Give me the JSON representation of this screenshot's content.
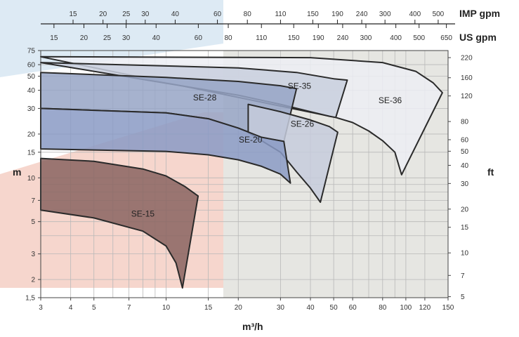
{
  "chart_data": {
    "type": "area",
    "title": "",
    "xlabel": "m³/h",
    "ylabel_left": "m",
    "ylabel_right": "ft",
    "x_scale": "log",
    "y_scale": "log",
    "xlim": [
      3,
      150
    ],
    "ylim": [
      1.5,
      75
    ],
    "top_axis_imp_label": "IMP gpm",
    "top_axis_us_label": "US gpm",
    "x_ticks": [
      {
        "v": 3,
        "label": "3"
      },
      {
        "v": 4,
        "label": "4"
      },
      {
        "v": 5,
        "label": "5"
      },
      {
        "v": 7,
        "label": "7"
      },
      {
        "v": 10,
        "label": "10"
      },
      {
        "v": 15,
        "label": "15"
      },
      {
        "v": 20,
        "label": "20"
      },
      {
        "v": 30,
        "label": "30"
      },
      {
        "v": 40,
        "label": "40"
      },
      {
        "v": 50,
        "label": "50"
      },
      {
        "v": 60,
        "label": "60"
      },
      {
        "v": 80,
        "label": "80"
      },
      {
        "v": 100,
        "label": "100"
      },
      {
        "v": 120,
        "label": "120"
      },
      {
        "v": 150,
        "label": "150"
      }
    ],
    "y_ticks_m": [
      {
        "v": 1.5,
        "label": "1,5"
      },
      {
        "v": 2,
        "label": "2"
      },
      {
        "v": 3,
        "label": "3"
      },
      {
        "v": 5,
        "label": "5"
      },
      {
        "v": 7,
        "label": "7"
      },
      {
        "v": 10,
        "label": "10"
      },
      {
        "v": 15,
        "label": "15"
      },
      {
        "v": 20,
        "label": "20"
      },
      {
        "v": 30,
        "label": "30"
      },
      {
        "v": 40,
        "label": "40"
      },
      {
        "v": 50,
        "label": "50"
      },
      {
        "v": 60,
        "label": "60"
      },
      {
        "v": 75,
        "label": "75"
      }
    ],
    "y_ticks_ft": [
      "5",
      "7",
      "10",
      "15",
      "20",
      "30",
      "40",
      "50",
      "60",
      "80",
      "120",
      "160",
      "220"
    ],
    "imp_gpm_ticks": [
      "15",
      "20",
      "25",
      "30",
      "40",
      "60",
      "80",
      "110",
      "150",
      "190",
      "240",
      "300",
      "400",
      "500"
    ],
    "us_gpm_ticks": [
      "15",
      "20",
      "25",
      "30",
      "40",
      "60",
      "80",
      "110",
      "150",
      "190",
      "240",
      "300",
      "400",
      "500",
      "650"
    ],
    "series": [
      {
        "name": "SE-15",
        "color": "#8a6460",
        "upper": [
          [
            3,
            13.6
          ],
          [
            5,
            13.0
          ],
          [
            8,
            11.5
          ],
          [
            10,
            10.3
          ],
          [
            12,
            8.7
          ],
          [
            13.6,
            7.5
          ]
        ],
        "lower": [
          [
            3,
            6.0
          ],
          [
            5,
            5.3
          ],
          [
            8,
            4.3
          ],
          [
            10,
            3.4
          ],
          [
            11,
            2.6
          ],
          [
            11.7,
            1.75
          ]
        ]
      },
      {
        "name": "SE-20",
        "color": "#8a9ac4",
        "upper": [
          [
            3,
            15.8
          ],
          [
            10,
            15.2
          ],
          [
            15,
            14.4
          ],
          [
            20,
            13.3
          ],
          [
            25,
            12.0
          ],
          [
            30,
            10.6
          ],
          [
            33,
            9.2
          ]
        ],
        "lower": [
          [
            3,
            30.0
          ],
          [
            10,
            28.0
          ],
          [
            15,
            25.5
          ],
          [
            20,
            22.0
          ],
          [
            25,
            19.0
          ],
          [
            31,
            17.8
          ]
        ]
      },
      {
        "name": "SE-26",
        "color": "#c5cbdc",
        "upper": [
          [
            22,
            20.5
          ],
          [
            30,
            15.0
          ],
          [
            35,
            11.0
          ],
          [
            40,
            8.5
          ],
          [
            44,
            6.8
          ]
        ],
        "lower": [
          [
            22,
            32.0
          ],
          [
            30,
            28.5
          ],
          [
            40,
            25.0
          ],
          [
            48,
            22.5
          ],
          [
            52,
            20.6
          ]
        ]
      },
      {
        "name": "SE-28",
        "color": "#97a4c6",
        "upper": [
          [
            3,
            30.0
          ],
          [
            10,
            28.0
          ],
          [
            15,
            25.5
          ],
          [
            20,
            22.0
          ],
          [
            25,
            19.0
          ],
          [
            31,
            17.8
          ]
        ],
        "lower": [
          [
            3,
            53.0
          ],
          [
            10,
            49.0
          ],
          [
            20,
            46.0
          ],
          [
            30,
            43.0
          ],
          [
            35,
            41.0
          ]
        ]
      },
      {
        "name": "SE-35",
        "color": "#c9cfde",
        "upper": [
          [
            20,
            37.0
          ],
          [
            30,
            32.0
          ],
          [
            40,
            28.5
          ],
          [
            48,
            26.5
          ],
          [
            51,
            26.0
          ]
        ],
        "lower": [
          [
            3,
            62.0
          ],
          [
            20,
            57.0
          ],
          [
            35,
            53.0
          ],
          [
            50,
            48.0
          ],
          [
            57,
            47.0
          ]
        ]
      },
      {
        "name": "SE-36",
        "color": "#ecedf3",
        "upper": [
          [
            51,
            26.0
          ],
          [
            60,
            24.0
          ],
          [
            70,
            21.0
          ],
          [
            80,
            18.0
          ],
          [
            90,
            15.0
          ],
          [
            96,
            10.5
          ]
        ],
        "lower": [
          [
            3,
            68.0
          ],
          [
            40,
            67.0
          ],
          [
            80,
            62.0
          ],
          [
            110,
            54.0
          ],
          [
            130,
            45.0
          ],
          [
            142,
            38.5
          ]
        ]
      }
    ]
  }
}
